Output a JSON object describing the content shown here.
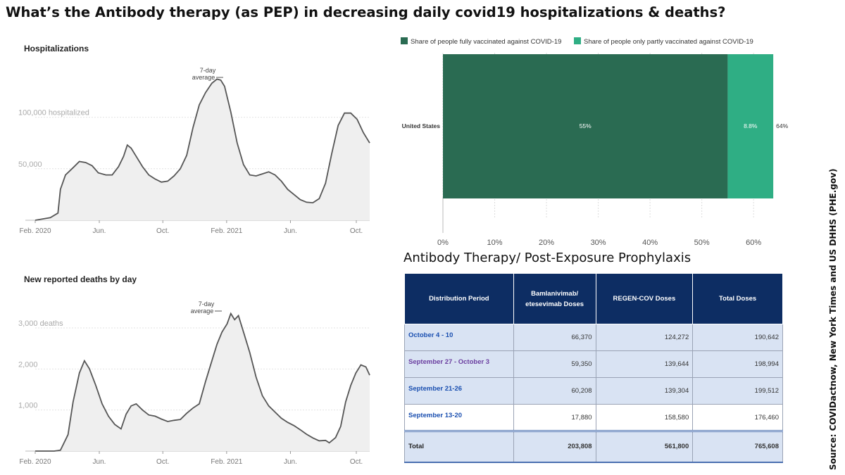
{
  "title": "What’s the Antibody therapy (as PEP) in decreasing daily covid19 hospitalizations & deaths?",
  "source": "Source: COVIDactnow, New York Times and  US DHHS (PHE.gov)",
  "chart_data": [
    {
      "type": "area",
      "title": "Hospitalizations",
      "annotation": [
        "7-day",
        "average"
      ],
      "x_ticks": [
        "Feb. 2020",
        "Jun.",
        "Oct.",
        "Feb. 2021",
        "Jun.",
        "Oct."
      ],
      "y_ticks": [
        {
          "value": 50000,
          "label": "50,000"
        },
        {
          "value": 100000,
          "label": "100,000 hospitalized"
        }
      ],
      "ylim": [
        0,
        140000
      ],
      "grid": true,
      "series": [
        {
          "values": [
            [
              0,
              0
            ],
            [
              1.2,
              2500
            ],
            [
              1.8,
              7000
            ],
            [
              2.0,
              30000
            ],
            [
              2.4,
              44000
            ],
            [
              3.0,
              51000
            ],
            [
              3.5,
              57000
            ],
            [
              4.0,
              56000
            ],
            [
              4.5,
              53000
            ],
            [
              5.0,
              46000
            ],
            [
              5.6,
              44000
            ],
            [
              6.1,
              44000
            ],
            [
              6.6,
              52000
            ],
            [
              7.0,
              62000
            ],
            [
              7.3,
              73000
            ],
            [
              7.6,
              70000
            ],
            [
              8.0,
              62000
            ],
            [
              8.5,
              52000
            ],
            [
              9.0,
              44000
            ],
            [
              9.5,
              40000
            ],
            [
              10.0,
              37000
            ],
            [
              10.5,
              38000
            ],
            [
              11.0,
              43000
            ],
            [
              11.5,
              50000
            ],
            [
              12.0,
              63000
            ],
            [
              12.5,
              90000
            ],
            [
              13.0,
              112000
            ],
            [
              13.5,
              124000
            ],
            [
              14.0,
              133000
            ],
            [
              14.4,
              137000
            ],
            [
              14.7,
              136000
            ],
            [
              15.0,
              130000
            ],
            [
              15.5,
              105000
            ],
            [
              16.0,
              75000
            ],
            [
              16.5,
              54000
            ],
            [
              17.0,
              44000
            ],
            [
              17.5,
              43000
            ],
            [
              18.0,
              45000
            ],
            [
              18.5,
              47000
            ],
            [
              19.0,
              44000
            ],
            [
              19.5,
              38000
            ],
            [
              20.0,
              30000
            ],
            [
              20.5,
              25000
            ],
            [
              21.0,
              20000
            ],
            [
              21.5,
              17500
            ],
            [
              22.0,
              17000
            ],
            [
              22.5,
              21000
            ],
            [
              23.0,
              36000
            ],
            [
              23.5,
              65000
            ],
            [
              24.0,
              92000
            ],
            [
              24.5,
              104000
            ],
            [
              25.0,
              104000
            ],
            [
              25.5,
              98000
            ],
            [
              26.0,
              85000
            ],
            [
              26.5,
              75000
            ]
          ]
        }
      ]
    },
    {
      "type": "area",
      "title": "New reported deaths by day",
      "annotation": [
        "7-day",
        "average"
      ],
      "x_ticks": [
        "Feb. 2020",
        "Jun.",
        "Oct.",
        "Feb. 2021",
        "Jun.",
        "Oct."
      ],
      "y_ticks": [
        {
          "value": 1000,
          "label": "1,000"
        },
        {
          "value": 2000,
          "label": "2,000"
        },
        {
          "value": 3000,
          "label": "3,000 deaths"
        }
      ],
      "ylim": [
        0,
        3600
      ],
      "grid": true,
      "series": [
        {
          "values": [
            [
              0,
              0
            ],
            [
              1.5,
              0
            ],
            [
              2.0,
              20
            ],
            [
              2.6,
              400
            ],
            [
              3.0,
              1200
            ],
            [
              3.5,
              1900
            ],
            [
              3.9,
              2200
            ],
            [
              4.3,
              2000
            ],
            [
              4.8,
              1600
            ],
            [
              5.3,
              1150
            ],
            [
              5.8,
              850
            ],
            [
              6.3,
              650
            ],
            [
              6.8,
              540
            ],
            [
              7.2,
              900
            ],
            [
              7.6,
              1100
            ],
            [
              8.0,
              1150
            ],
            [
              8.5,
              1000
            ],
            [
              9.0,
              880
            ],
            [
              9.5,
              850
            ],
            [
              10.0,
              780
            ],
            [
              10.5,
              720
            ],
            [
              11.0,
              750
            ],
            [
              11.5,
              770
            ],
            [
              12.0,
              920
            ],
            [
              12.5,
              1050
            ],
            [
              13.0,
              1150
            ],
            [
              13.5,
              1700
            ],
            [
              14.0,
              2200
            ],
            [
              14.4,
              2600
            ],
            [
              14.8,
              2900
            ],
            [
              15.2,
              3100
            ],
            [
              15.5,
              3350
            ],
            [
              15.8,
              3200
            ],
            [
              16.1,
              3300
            ],
            [
              16.5,
              2900
            ],
            [
              17.0,
              2400
            ],
            [
              17.5,
              1800
            ],
            [
              18.0,
              1350
            ],
            [
              18.5,
              1100
            ],
            [
              19.0,
              950
            ],
            [
              19.5,
              800
            ],
            [
              20.0,
              700
            ],
            [
              20.5,
              620
            ],
            [
              21.0,
              520
            ],
            [
              21.5,
              410
            ],
            [
              22.0,
              320
            ],
            [
              22.5,
              250
            ],
            [
              23.0,
              260
            ],
            [
              23.3,
              200
            ],
            [
              23.8,
              330
            ],
            [
              24.2,
              600
            ],
            [
              24.6,
              1200
            ],
            [
              25.0,
              1600
            ],
            [
              25.4,
              1900
            ],
            [
              25.8,
              2100
            ],
            [
              26.2,
              2050
            ],
            [
              26.5,
              1850
            ]
          ]
        }
      ]
    },
    {
      "type": "bar",
      "orientation": "horizontal",
      "categories": [
        "United States"
      ],
      "series": [
        {
          "name": "Share of people fully vaccinated against COVID-19",
          "values": [
            55
          ],
          "label": "55%",
          "color": "#2a6b52"
        },
        {
          "name": "Share of people only partly vaccinated against COVID-19",
          "values": [
            8.8
          ],
          "label": "8.8%",
          "color": "#2fae84"
        }
      ],
      "total_label": "64%",
      "x_ticks": [
        "0%",
        "10%",
        "20%",
        "30%",
        "40%",
        "50%",
        "60%"
      ],
      "xlim": [
        0,
        68
      ],
      "legend": "top",
      "grid": true
    }
  ],
  "table": {
    "title": "Antibody Therapy/ Post-Exposure Prophylaxis",
    "headers": [
      "Distribution Period",
      "Bamlanivimab/ etesevimab Doses",
      "REGEN-COV Doses",
      "Total Doses"
    ],
    "rows": [
      [
        "October 4 - 10",
        "66,370",
        "124,272",
        "190,642"
      ],
      [
        "September 27 - October 3",
        "59,350",
        "139,644",
        "198,994"
      ],
      [
        "September 21-26",
        "60,208",
        "139,304",
        "199,512"
      ],
      [
        "September 13-20",
        "17,880",
        "158,580",
        "176,460"
      ]
    ],
    "total": [
      "Total",
      "203,808",
      "561,800",
      "765,608"
    ]
  }
}
